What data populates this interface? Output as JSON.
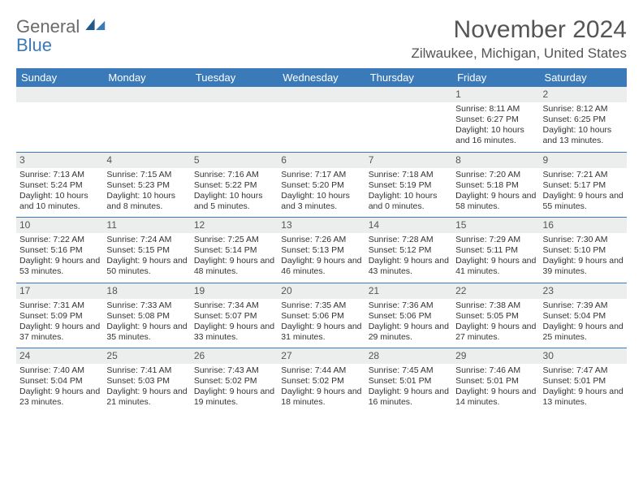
{
  "brand": {
    "line1": "General",
    "line2": "Blue"
  },
  "colors": {
    "header_bg": "#3a7ab8",
    "header_text": "#ffffff",
    "daynum_bg": "#eceded",
    "text": "#333333",
    "rule": "#3a7ab8"
  },
  "title": "November 2024",
  "location": "Zilwaukee, Michigan, United States",
  "weekdays": [
    "Sunday",
    "Monday",
    "Tuesday",
    "Wednesday",
    "Thursday",
    "Friday",
    "Saturday"
  ],
  "weeks": [
    [
      null,
      null,
      null,
      null,
      null,
      {
        "d": "1",
        "sr": "8:11 AM",
        "ss": "6:27 PM",
        "dl": "10 hours and 16 minutes."
      },
      {
        "d": "2",
        "sr": "8:12 AM",
        "ss": "6:25 PM",
        "dl": "10 hours and 13 minutes."
      }
    ],
    [
      {
        "d": "3",
        "sr": "7:13 AM",
        "ss": "5:24 PM",
        "dl": "10 hours and 10 minutes."
      },
      {
        "d": "4",
        "sr": "7:15 AM",
        "ss": "5:23 PM",
        "dl": "10 hours and 8 minutes."
      },
      {
        "d": "5",
        "sr": "7:16 AM",
        "ss": "5:22 PM",
        "dl": "10 hours and 5 minutes."
      },
      {
        "d": "6",
        "sr": "7:17 AM",
        "ss": "5:20 PM",
        "dl": "10 hours and 3 minutes."
      },
      {
        "d": "7",
        "sr": "7:18 AM",
        "ss": "5:19 PM",
        "dl": "10 hours and 0 minutes."
      },
      {
        "d": "8",
        "sr": "7:20 AM",
        "ss": "5:18 PM",
        "dl": "9 hours and 58 minutes."
      },
      {
        "d": "9",
        "sr": "7:21 AM",
        "ss": "5:17 PM",
        "dl": "9 hours and 55 minutes."
      }
    ],
    [
      {
        "d": "10",
        "sr": "7:22 AM",
        "ss": "5:16 PM",
        "dl": "9 hours and 53 minutes."
      },
      {
        "d": "11",
        "sr": "7:24 AM",
        "ss": "5:15 PM",
        "dl": "9 hours and 50 minutes."
      },
      {
        "d": "12",
        "sr": "7:25 AM",
        "ss": "5:14 PM",
        "dl": "9 hours and 48 minutes."
      },
      {
        "d": "13",
        "sr": "7:26 AM",
        "ss": "5:13 PM",
        "dl": "9 hours and 46 minutes."
      },
      {
        "d": "14",
        "sr": "7:28 AM",
        "ss": "5:12 PM",
        "dl": "9 hours and 43 minutes."
      },
      {
        "d": "15",
        "sr": "7:29 AM",
        "ss": "5:11 PM",
        "dl": "9 hours and 41 minutes."
      },
      {
        "d": "16",
        "sr": "7:30 AM",
        "ss": "5:10 PM",
        "dl": "9 hours and 39 minutes."
      }
    ],
    [
      {
        "d": "17",
        "sr": "7:31 AM",
        "ss": "5:09 PM",
        "dl": "9 hours and 37 minutes."
      },
      {
        "d": "18",
        "sr": "7:33 AM",
        "ss": "5:08 PM",
        "dl": "9 hours and 35 minutes."
      },
      {
        "d": "19",
        "sr": "7:34 AM",
        "ss": "5:07 PM",
        "dl": "9 hours and 33 minutes."
      },
      {
        "d": "20",
        "sr": "7:35 AM",
        "ss": "5:06 PM",
        "dl": "9 hours and 31 minutes."
      },
      {
        "d": "21",
        "sr": "7:36 AM",
        "ss": "5:06 PM",
        "dl": "9 hours and 29 minutes."
      },
      {
        "d": "22",
        "sr": "7:38 AM",
        "ss": "5:05 PM",
        "dl": "9 hours and 27 minutes."
      },
      {
        "d": "23",
        "sr": "7:39 AM",
        "ss": "5:04 PM",
        "dl": "9 hours and 25 minutes."
      }
    ],
    [
      {
        "d": "24",
        "sr": "7:40 AM",
        "ss": "5:04 PM",
        "dl": "9 hours and 23 minutes."
      },
      {
        "d": "25",
        "sr": "7:41 AM",
        "ss": "5:03 PM",
        "dl": "9 hours and 21 minutes."
      },
      {
        "d": "26",
        "sr": "7:43 AM",
        "ss": "5:02 PM",
        "dl": "9 hours and 19 minutes."
      },
      {
        "d": "27",
        "sr": "7:44 AM",
        "ss": "5:02 PM",
        "dl": "9 hours and 18 minutes."
      },
      {
        "d": "28",
        "sr": "7:45 AM",
        "ss": "5:01 PM",
        "dl": "9 hours and 16 minutes."
      },
      {
        "d": "29",
        "sr": "7:46 AM",
        "ss": "5:01 PM",
        "dl": "9 hours and 14 minutes."
      },
      {
        "d": "30",
        "sr": "7:47 AM",
        "ss": "5:01 PM",
        "dl": "9 hours and 13 minutes."
      }
    ]
  ],
  "labels": {
    "sunrise": "Sunrise: ",
    "sunset": "Sunset: ",
    "daylight": "Daylight: "
  }
}
